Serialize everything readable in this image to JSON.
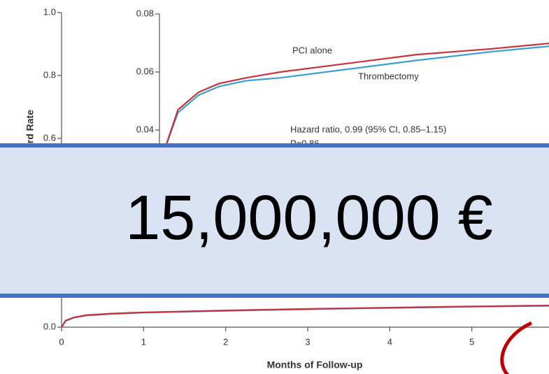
{
  "banner": {
    "text": "15,000,000 €"
  },
  "chart_data": [
    {
      "type": "line",
      "y_label": "ard Rate",
      "x_label": "Months of Follow-up",
      "xlim": [
        0,
        6
      ],
      "xticks": [
        0,
        1,
        2,
        3,
        4,
        5
      ],
      "ylim": [
        0,
        1
      ],
      "yticks": [
        {
          "value": 0,
          "label": "0.0"
        },
        0.6,
        0.8,
        {
          "value": 1,
          "label": "1.0"
        }
      ],
      "series": [
        {
          "name": null,
          "color": "#3a9fd6",
          "x": [
            0,
            0.05,
            0.15,
            0.3,
            0.6,
            1,
            2,
            3,
            4,
            5,
            6
          ],
          "values": [
            0,
            0.02,
            0.03,
            0.037,
            0.042,
            0.046,
            0.052,
            0.057,
            0.061,
            0.065,
            0.068
          ]
        },
        {
          "name": null,
          "color": "#c8323c",
          "x": [
            0,
            0.05,
            0.15,
            0.3,
            0.6,
            1,
            2,
            3,
            4,
            5,
            6
          ],
          "values": [
            0,
            0.021,
            0.031,
            0.038,
            0.043,
            0.047,
            0.053,
            0.058,
            0.062,
            0.066,
            0.069
          ]
        }
      ]
    },
    {
      "type": "line",
      "xlim": [
        0,
        6
      ],
      "ylim": [
        0,
        0.08
      ],
      "yticks": [
        0.04,
        0.06,
        0.08
      ],
      "annotations": [
        "Hazard ratio, 0.99 (95% CI, 0.85–1.15)",
        "P=0.86"
      ],
      "series": [
        {
          "name": "Thrombectomy",
          "color": "#3a9fd6",
          "x": [
            0,
            0.2,
            0.5,
            0.8,
            1.2,
            1.7,
            2.7,
            3.7,
            4.8,
            5.7
          ],
          "values": [
            0.033,
            0.046,
            0.052,
            0.055,
            0.057,
            0.058,
            0.061,
            0.064,
            0.067,
            0.069
          ]
        },
        {
          "name": "PCI alone",
          "color": "#c8323c",
          "x": [
            0,
            0.2,
            0.5,
            0.8,
            1.2,
            1.7,
            2.7,
            3.7,
            4.8,
            5.7
          ],
          "values": [
            0.033,
            0.047,
            0.053,
            0.056,
            0.058,
            0.06,
            0.063,
            0.066,
            0.068,
            0.07
          ]
        }
      ]
    }
  ]
}
